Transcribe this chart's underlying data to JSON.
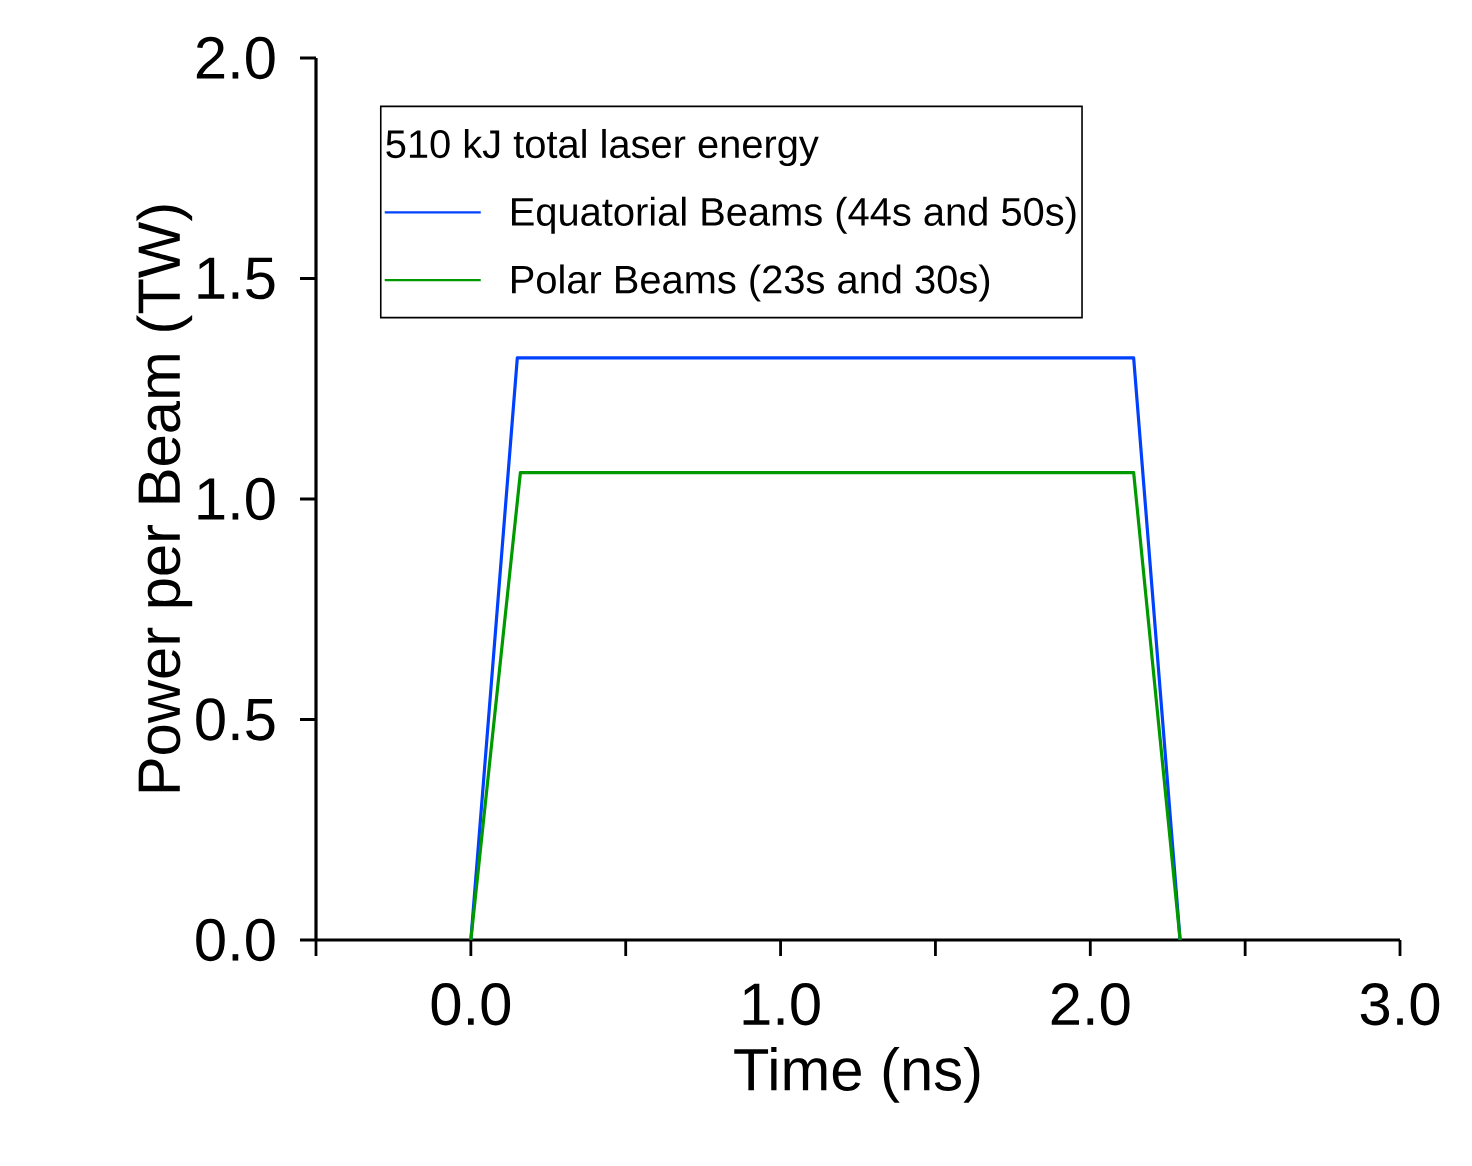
{
  "chart_data": {
    "type": "line",
    "xlabel": "Time (ns)",
    "ylabel": "Power per Beam (TW)",
    "legend_title": "510 kJ total laser energy",
    "legend": "top left",
    "xlim": [
      -0.5,
      3.0
    ],
    "ylim": [
      0,
      2.0
    ],
    "xticks": [
      {
        "value": -0.5,
        "label": null
      },
      {
        "value": 0,
        "label": "0.0"
      },
      {
        "value": 0.5,
        "label": null
      },
      {
        "value": 1,
        "label": "1.0"
      },
      {
        "value": 1.5,
        "label": null
      },
      {
        "value": 2,
        "label": "2.0"
      },
      {
        "value": 2.5,
        "label": null
      },
      {
        "value": 3,
        "label": "3.0"
      }
    ],
    "yticks": [
      {
        "value": 0,
        "label": "0.0"
      },
      {
        "value": 0.5,
        "label": "0.5"
      },
      {
        "value": 1,
        "label": "1.0"
      },
      {
        "value": 1.5,
        "label": "1.5"
      },
      {
        "value": 2,
        "label": "2.0"
      }
    ],
    "series": [
      {
        "name": "Equatorial Beams (44s and 50s)",
        "color": "#0040ff",
        "x": [
          0,
          0.15,
          2.14,
          2.29
        ],
        "values": [
          0,
          1.32,
          1.32,
          0
        ]
      },
      {
        "name": "Polar Beams (23s and 30s)",
        "color": "#009900",
        "x": [
          0,
          0.16,
          2.14,
          2.29
        ],
        "values": [
          0,
          1.06,
          1.06,
          0
        ]
      }
    ]
  }
}
